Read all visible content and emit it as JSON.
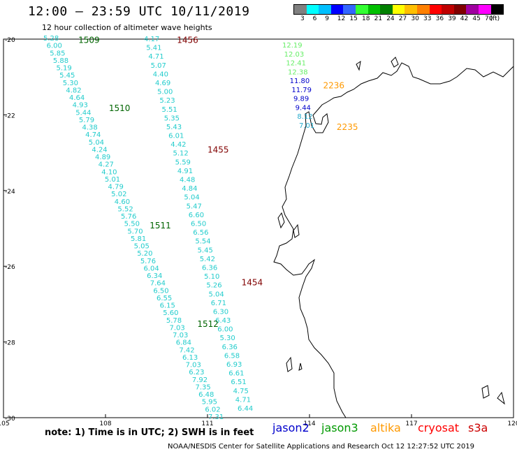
{
  "header": {
    "title": "12:00 – 23:59 UTC 10/11/2019",
    "subtitle": "12 hour collection of altimeter wave heights"
  },
  "legend": {
    "colors": [
      "#808080",
      "#00ffff",
      "#00c0ff",
      "#0000ff",
      "#3366ff",
      "#33ff33",
      "#00c000",
      "#008000",
      "#ffff00",
      "#ffc000",
      "#ff8000",
      "#ff0000",
      "#c00000",
      "#800000",
      "#a000a0",
      "#ff00ff",
      "#000000"
    ],
    "labels": [
      "3",
      "6",
      "9",
      "12",
      "15",
      "18",
      "21",
      "24",
      "27",
      "30",
      "33",
      "36",
      "39",
      "42",
      "45",
      "70",
      "(ft)"
    ]
  },
  "axes": {
    "lon_ticks": [
      "105",
      "108",
      "111",
      "114",
      "117",
      "120"
    ],
    "lat_ticks": [
      "-20",
      "-22",
      "-24",
      "-26",
      "-28",
      "-30"
    ]
  },
  "tracks": [
    {
      "id": "1509",
      "color": "#006400",
      "label_lat": -20.1,
      "label_lon": 107.2,
      "values": [
        "5.28",
        "6.00",
        "5.85",
        "5.88",
        "5.19",
        "5.45",
        "5.30",
        "4.82",
        "4.64",
        "4.93",
        "5.44",
        "5.79",
        "4.38",
        "4.74",
        "5.04",
        "4.24",
        "4.89",
        "4.27",
        "4.10",
        "5.01",
        "4.79",
        "5.02",
        "4.60",
        "5.52",
        "5.76",
        "5.50",
        "5.70",
        "5.81",
        "5.05",
        "5.20",
        "5.76",
        "6.04",
        "6.34",
        "7.64",
        "6.50",
        "6.55",
        "6.15",
        "5.60",
        "5.78",
        "7.03",
        "7.03",
        "6.84",
        "7.42",
        "6.13",
        "7.03",
        "6.23",
        "7.92",
        "7.35",
        "6.48",
        "5.95",
        "6.02",
        "7.31"
      ]
    },
    {
      "id": "1456",
      "color": "#800000",
      "label_lat": -20.1,
      "label_lon": 110.1,
      "values": [
        "4.17",
        "5.41",
        "4.71",
        "5.07",
        "4.40",
        "4.69",
        "5.00",
        "5.23",
        "5.51",
        "5.35",
        "5.43",
        "6.01",
        "4.42",
        "5.12",
        "5.59",
        "4.91",
        "4.48",
        "4.84",
        "5.04",
        "5.47",
        "6.60",
        "6.50",
        "6.56",
        "5.54",
        "5.45",
        "5.42",
        "6.36",
        "5.10",
        "5.26",
        "5.04",
        "6.71",
        "6.30",
        "6.43",
        "6.00",
        "5.30",
        "6.36",
        "6.58",
        "6.93",
        "6.61",
        "6.51",
        "4.75",
        "4.71",
        "6.44"
      ]
    }
  ],
  "track_labels": [
    {
      "id": "1510",
      "color": "#006400",
      "lat": -21.9,
      "lon": 108.1
    },
    {
      "id": "1511",
      "color": "#006400",
      "lat": -25.0,
      "lon": 109.3
    },
    {
      "id": "1512",
      "color": "#006400",
      "lat": -27.6,
      "lon": 110.7
    },
    {
      "id": "1455",
      "color": "#800000",
      "lat": -23.0,
      "lon": 111.0
    },
    {
      "id": "1454",
      "color": "#800000",
      "lat": -26.5,
      "lon": 112.0
    },
    {
      "id": "2236",
      "color": "#ff9900",
      "lat": -21.3,
      "lon": 114.4
    },
    {
      "id": "2235",
      "color": "#ff9900",
      "lat": -22.4,
      "lon": 114.8
    }
  ],
  "short_track": {
    "values": [
      {
        "v": "12.19",
        "color": "#66ee66"
      },
      {
        "v": "12.03",
        "color": "#66ee66"
      },
      {
        "v": "12.41",
        "color": "#66ee66"
      },
      {
        "v": "12.38",
        "color": "#66ee66"
      },
      {
        "v": "11.80",
        "color": "#0000cc"
      },
      {
        "v": "11.79",
        "color": "#0000cc"
      },
      {
        "v": "9.89",
        "color": "#0000cc"
      },
      {
        "v": "9.44",
        "color": "#0000cc"
      },
      {
        "v": "8.12",
        "color": "#22aacc"
      },
      {
        "v": "7.01",
        "color": "#22aacc"
      }
    ]
  },
  "footer": {
    "note": "note:  1) Time is in UTC;  2) SWH is in feet",
    "satellites": [
      {
        "name": "jason2",
        "color": "#0000cc"
      },
      {
        "name": "jason3",
        "color": "#009900"
      },
      {
        "name": "altika",
        "color": "#ff9900"
      },
      {
        "name": "cryosat",
        "color": "#ff0000"
      },
      {
        "name": "s3a",
        "color": "#cc0000"
      }
    ],
    "credit": "NOAA/NESDIS Center for Satellite Applications and Research     Oct 12 12:27:52 UTC 2019"
  }
}
